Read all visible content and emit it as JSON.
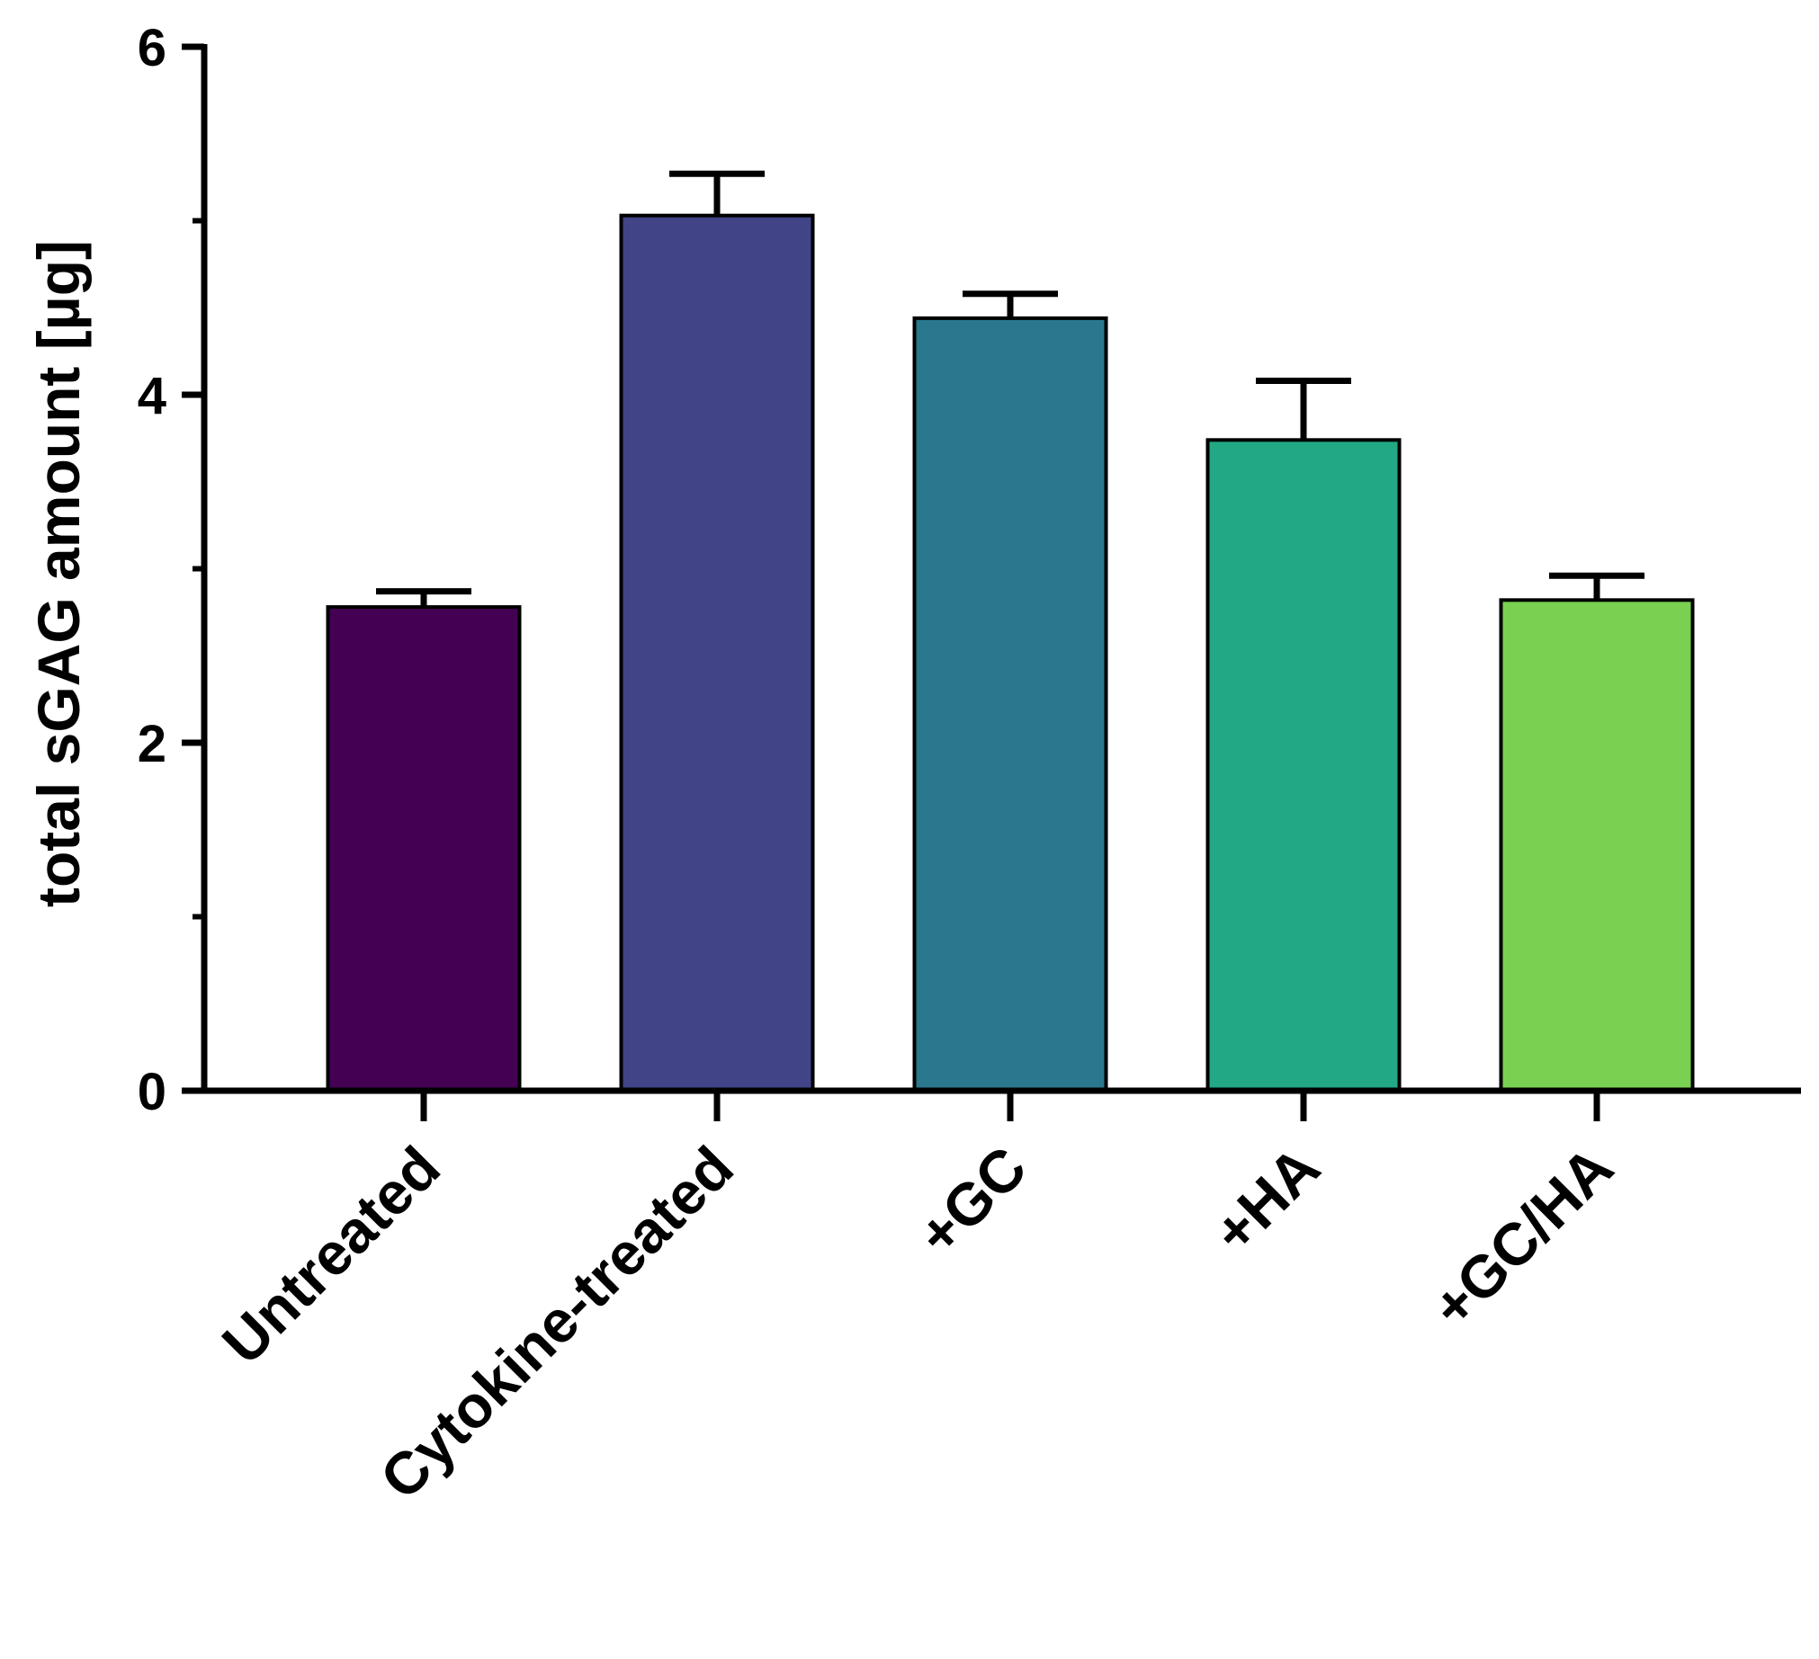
{
  "chart_data": {
    "type": "bar",
    "title": "",
    "xlabel": "",
    "ylabel": "total sGAG amount [µg]",
    "ylim": [
      0,
      6
    ],
    "yticks": [
      0,
      2,
      4,
      6
    ],
    "y_minor_ticks": [
      1,
      3,
      5
    ],
    "grid": false,
    "legend": "none",
    "categories": [
      "Untreated",
      "Cytokine-treated",
      "+GC",
      "+HA",
      "+GC/HA"
    ],
    "values": [
      2.78,
      5.03,
      4.44,
      3.74,
      2.82
    ],
    "errors": [
      0.09,
      0.24,
      0.14,
      0.34,
      0.14
    ],
    "colors": [
      "#440154",
      "#414487",
      "#2a788e",
      "#22a884",
      "#7ad151"
    ],
    "axis_color": "#000000"
  }
}
